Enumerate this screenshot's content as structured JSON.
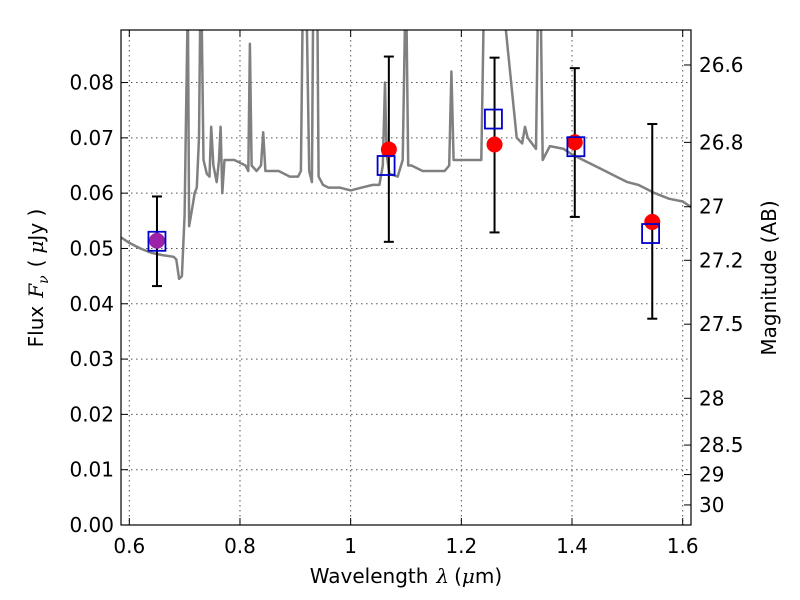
{
  "chart_data": {
    "type": "scatter",
    "xlabel": "Wavelength",
    "xlabel_symbol": "λ",
    "xlabel_unit_prefix": "(",
    "xlabel_unit_mu": "μ",
    "xlabel_unit_rest": "m)",
    "ylabel": "Flux",
    "ylabel_symbol": "F",
    "ylabel_symbol_sub": "ν",
    "ylabel_unit_prefix": "(",
    "ylabel_unit_mu": "μ",
    "ylabel_unit_rest": "Jy )",
    "y2label": "Magnitude (AB)",
    "xlim": [
      0.585,
      1.615
    ],
    "ylim": [
      0.0,
      0.0895
    ],
    "grid": true,
    "colors": {
      "spectrum": "#808080",
      "observed_points": "#ff0000",
      "model_points": "#0000cc",
      "error_bars": "#000000",
      "overlap_point": "#9b22a8"
    },
    "x_ticks": [
      {
        "value": 0.6,
        "label": "0.6"
      },
      {
        "value": 0.8,
        "label": "0.8"
      },
      {
        "value": 1.0,
        "label": "1"
      },
      {
        "value": 1.2,
        "label": "1.2"
      },
      {
        "value": 1.4,
        "label": "1.4"
      },
      {
        "value": 1.6,
        "label": "1.6"
      }
    ],
    "y_ticks": [
      {
        "value": 0.0,
        "label": "0.00"
      },
      {
        "value": 0.01,
        "label": "0.01"
      },
      {
        "value": 0.02,
        "label": "0.02"
      },
      {
        "value": 0.03,
        "label": "0.03"
      },
      {
        "value": 0.04,
        "label": "0.04"
      },
      {
        "value": 0.05,
        "label": "0.05"
      },
      {
        "value": 0.06,
        "label": "0.06"
      },
      {
        "value": 0.07,
        "label": "0.07"
      },
      {
        "value": 0.08,
        "label": "0.08"
      }
    ],
    "y2_ticks": [
      {
        "value": 26.6,
        "label": "26.6"
      },
      {
        "value": 26.8,
        "label": "26.8"
      },
      {
        "value": 27.0,
        "label": "27"
      },
      {
        "value": 27.2,
        "label": "27.2"
      },
      {
        "value": 27.5,
        "label": "27.5"
      },
      {
        "value": 28.0,
        "label": "28"
      },
      {
        "value": 28.5,
        "label": "28.5"
      },
      {
        "value": 29.0,
        "label": "29"
      },
      {
        "value": 30.0,
        "label": "30"
      }
    ],
    "series": [
      {
        "kind": "spectrum_line",
        "points": [
          [
            0.585,
            0.052
          ],
          [
            0.6,
            0.051
          ],
          [
            0.62,
            0.05
          ],
          [
            0.64,
            0.0492
          ],
          [
            0.66,
            0.0488
          ],
          [
            0.68,
            0.0485
          ],
          [
            0.685,
            0.048
          ],
          [
            0.69,
            0.0445
          ],
          [
            0.695,
            0.045
          ],
          [
            0.7,
            0.056
          ],
          [
            0.702,
            0.07
          ],
          [
            0.705,
            0.09
          ],
          [
            0.706,
            0.09
          ],
          [
            0.708,
            0.054
          ],
          [
            0.715,
            0.058
          ],
          [
            0.718,
            0.06
          ],
          [
            0.722,
            0.061
          ],
          [
            0.726,
            0.07
          ],
          [
            0.728,
            0.09
          ],
          [
            0.731,
            0.09
          ],
          [
            0.734,
            0.066
          ],
          [
            0.74,
            0.0635
          ],
          [
            0.745,
            0.063
          ],
          [
            0.748,
            0.072
          ],
          [
            0.752,
            0.065
          ],
          [
            0.758,
            0.062
          ],
          [
            0.762,
            0.066
          ],
          [
            0.765,
            0.072
          ],
          [
            0.768,
            0.06
          ],
          [
            0.772,
            0.066
          ],
          [
            0.79,
            0.066
          ],
          [
            0.81,
            0.065
          ],
          [
            0.815,
            0.064
          ],
          [
            0.818,
            0.087
          ],
          [
            0.821,
            0.065
          ],
          [
            0.83,
            0.064
          ],
          [
            0.838,
            0.065
          ],
          [
            0.842,
            0.071
          ],
          [
            0.846,
            0.064
          ],
          [
            0.87,
            0.064
          ],
          [
            0.89,
            0.063
          ],
          [
            0.905,
            0.063
          ],
          [
            0.91,
            0.064
          ],
          [
            0.913,
            0.09
          ],
          [
            0.921,
            0.09
          ],
          [
            0.925,
            0.064
          ],
          [
            0.93,
            0.062
          ],
          [
            0.932,
            0.09
          ],
          [
            0.94,
            0.09
          ],
          [
            0.942,
            0.063
          ],
          [
            0.95,
            0.0615
          ],
          [
            0.96,
            0.061
          ],
          [
            0.98,
            0.061
          ],
          [
            1.0,
            0.0605
          ],
          [
            1.02,
            0.061
          ],
          [
            1.04,
            0.0615
          ],
          [
            1.052,
            0.0615
          ],
          [
            1.058,
            0.065
          ],
          [
            1.062,
            0.08
          ],
          [
            1.065,
            0.067
          ],
          [
            1.07,
            0.0635
          ],
          [
            1.085,
            0.063
          ],
          [
            1.094,
            0.066
          ],
          [
            1.098,
            0.09
          ],
          [
            1.101,
            0.09
          ],
          [
            1.104,
            0.065
          ],
          [
            1.11,
            0.065
          ],
          [
            1.13,
            0.064
          ],
          [
            1.15,
            0.064
          ],
          [
            1.17,
            0.064
          ],
          [
            1.178,
            0.065
          ],
          [
            1.182,
            0.082
          ],
          [
            1.186,
            0.066
          ],
          [
            1.2,
            0.066
          ],
          [
            1.22,
            0.066
          ],
          [
            1.236,
            0.066
          ],
          [
            1.24,
            0.09
          ],
          [
            1.27,
            0.09
          ],
          [
            1.28,
            0.09
          ],
          [
            1.3,
            0.07
          ],
          [
            1.31,
            0.069
          ],
          [
            1.315,
            0.072
          ],
          [
            1.32,
            0.07
          ],
          [
            1.335,
            0.068
          ],
          [
            1.338,
            0.09
          ],
          [
            1.344,
            0.09
          ],
          [
            1.347,
            0.066
          ],
          [
            1.36,
            0.0685
          ],
          [
            1.385,
            0.068
          ],
          [
            1.4,
            0.067
          ],
          [
            1.42,
            0.066
          ],
          [
            1.44,
            0.065
          ],
          [
            1.46,
            0.064
          ],
          [
            1.48,
            0.063
          ],
          [
            1.5,
            0.062
          ],
          [
            1.52,
            0.0615
          ],
          [
            1.55,
            0.06
          ],
          [
            1.575,
            0.059
          ],
          [
            1.6,
            0.0585
          ],
          [
            1.615,
            0.0575
          ]
        ]
      },
      {
        "kind": "observed",
        "marker": "filled-circle",
        "points": [
          {
            "x": 0.65,
            "y": 0.0514,
            "yerr_low": 0.0432,
            "yerr_high": 0.0594
          },
          {
            "x": 1.069,
            "y": 0.0679,
            "yerr_low": 0.0512,
            "yerr_high": 0.0847
          },
          {
            "x": 1.26,
            "y": 0.0688,
            "yerr_low": 0.0529,
            "yerr_high": 0.0845
          },
          {
            "x": 1.405,
            "y": 0.0692,
            "yerr_low": 0.0557,
            "yerr_high": 0.0826
          },
          {
            "x": 1.545,
            "y": 0.0548,
            "yerr_low": 0.0373,
            "yerr_high": 0.0725
          }
        ]
      },
      {
        "kind": "model",
        "marker": "open-square",
        "points": [
          {
            "x": 0.65,
            "y": 0.0513
          },
          {
            "x": 1.064,
            "y": 0.065
          },
          {
            "x": 1.258,
            "y": 0.0734
          },
          {
            "x": 1.407,
            "y": 0.0684
          },
          {
            "x": 1.542,
            "y": 0.0527
          }
        ]
      }
    ]
  }
}
